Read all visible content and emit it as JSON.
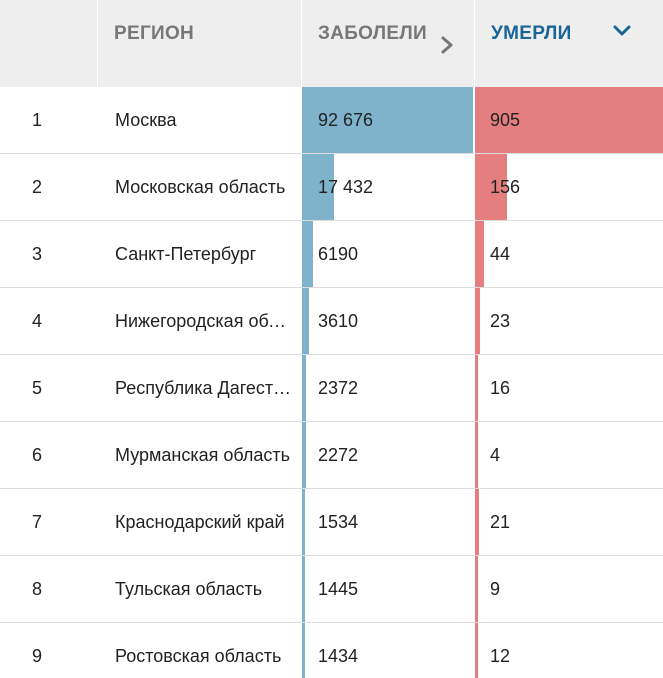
{
  "header": {
    "region_label": "РЕГИОН",
    "sick_label": "ЗАБОЛЕЛИ",
    "dead_label": "УМЕРЛИ",
    "sick_sort_icon": "chevron-right-icon",
    "dead_sort_icon": "chevron-down-icon",
    "active_sort_color": "#1a6496"
  },
  "colors": {
    "sick_bar": "#7fb3cc",
    "dead_bar": "#e57f7f",
    "header_bg": "#eeeeee"
  },
  "rows": [
    {
      "rank": "1",
      "region": "Москва",
      "sick": "92 676",
      "dead": "905",
      "sick_value": 92676,
      "dead_value": 905
    },
    {
      "rank": "2",
      "region": "Московская область",
      "sick": "17 432",
      "dead": "156",
      "sick_value": 17432,
      "dead_value": 156
    },
    {
      "rank": "3",
      "region": "Санкт-Петербург",
      "sick": "6190",
      "dead": "44",
      "sick_value": 6190,
      "dead_value": 44
    },
    {
      "rank": "4",
      "region": "Нижегородская область",
      "sick": "3610",
      "dead": "23",
      "sick_value": 3610,
      "dead_value": 23
    },
    {
      "rank": "5",
      "region": "Республика Дагестан",
      "sick": "2372",
      "dead": "16",
      "sick_value": 2372,
      "dead_value": 16
    },
    {
      "rank": "6",
      "region": "Мурманская область",
      "sick": "2272",
      "dead": "4",
      "sick_value": 2272,
      "dead_value": 4
    },
    {
      "rank": "7",
      "region": "Краснодарский край",
      "sick": "1534",
      "dead": "21",
      "sick_value": 1534,
      "dead_value": 21
    },
    {
      "rank": "8",
      "region": "Тульская область",
      "sick": "1445",
      "dead": "9",
      "sick_value": 1445,
      "dead_value": 9
    },
    {
      "rank": "9",
      "region": "Ростовская область",
      "sick": "1434",
      "dead": "12",
      "sick_value": 1434,
      "dead_value": 12
    }
  ]
}
